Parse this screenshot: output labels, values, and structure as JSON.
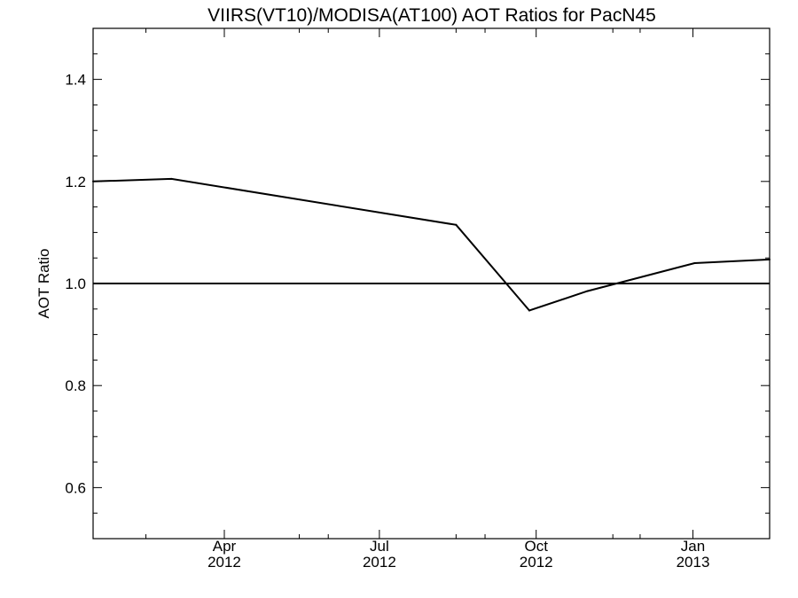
{
  "chart_data": {
    "type": "line",
    "title": "VIIRS(VT10)/MODISA(AT100)  AOT Ratios for PacN45",
    "xlabel": "",
    "ylabel": "AOT Ratio",
    "xlim": [
      "2012-01-15",
      "2013-02-15"
    ],
    "ylim": [
      0.5,
      1.5
    ],
    "yticks": [
      0.6,
      0.8,
      1.0,
      1.2,
      1.4
    ],
    "ytick_labels": [
      "0.6",
      "0.8",
      "1.0",
      "1.2",
      "1.4"
    ],
    "xticks": [
      {
        "date": "2012-04-01",
        "month": "Apr",
        "year": "2012"
      },
      {
        "date": "2012-07-01",
        "month": "Jul",
        "year": "2012"
      },
      {
        "date": "2012-10-01",
        "month": "Oct",
        "year": "2012"
      },
      {
        "date": "2013-01-01",
        "month": "Jan",
        "year": "2013"
      }
    ],
    "minor_xticks": [
      "2012-02-15",
      "2012-05-15",
      "2012-06-01",
      "2012-08-15",
      "2012-09-01",
      "2012-11-15",
      "2012-12-01"
    ],
    "reference_line": {
      "y": 1.0
    },
    "series": [
      {
        "x": [
          "2012-01-15",
          "2012-03-01",
          "2012-08-15",
          "2012-09-27",
          "2012-10-31",
          "2013-01-02",
          "2013-02-15"
        ],
        "y": [
          1.2,
          1.205,
          1.115,
          0.947,
          0.985,
          1.04,
          1.047
        ]
      }
    ],
    "grid": false,
    "legend": "none",
    "line_color": "#000000"
  }
}
